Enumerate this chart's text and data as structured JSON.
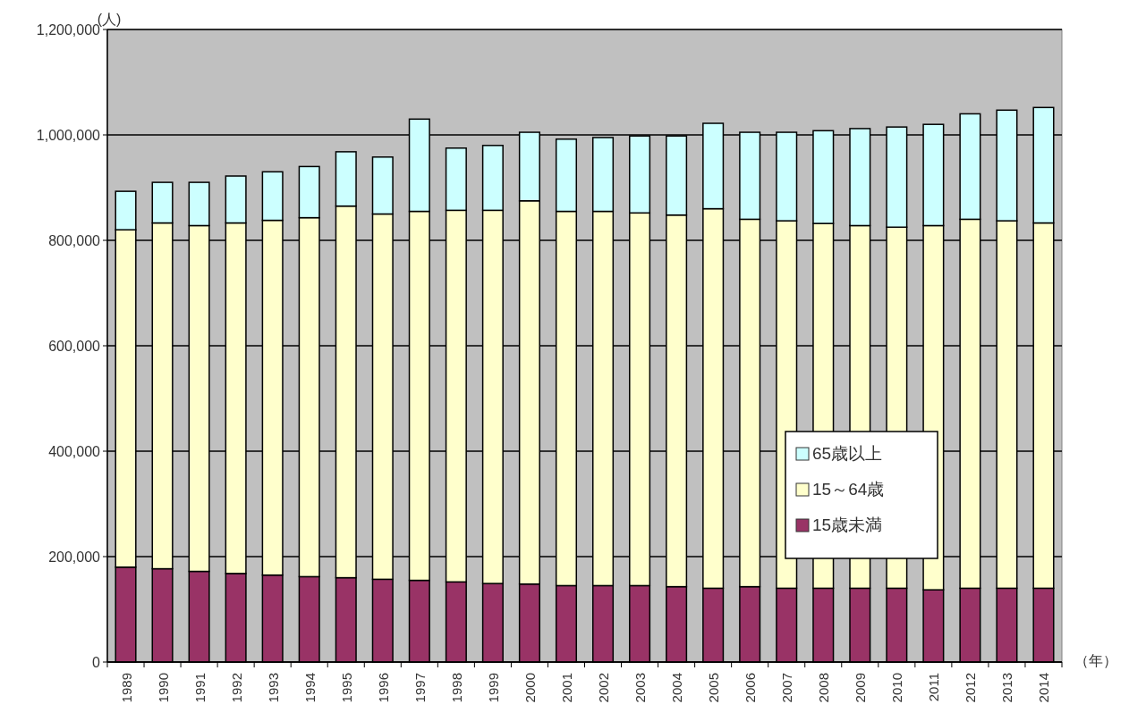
{
  "chart_data": {
    "type": "bar",
    "stacked": true,
    "xlabel": "（年）",
    "ylabel": "(人)",
    "categories": [
      "1989",
      "1990",
      "1991",
      "1992",
      "1993",
      "1994",
      "1995",
      "1996",
      "1997",
      "1998",
      "1999",
      "2000",
      "2001",
      "2002",
      "2003",
      "2004",
      "2005",
      "2006",
      "2007",
      "2008",
      "2009",
      "2010",
      "2011",
      "2012",
      "2013",
      "2014"
    ],
    "series": [
      {
        "name": "15歳未満",
        "color": "#993366",
        "values": [
          180000,
          177000,
          172000,
          168000,
          165000,
          162000,
          160000,
          157000,
          155000,
          152000,
          149000,
          148000,
          145000,
          145000,
          145000,
          143000,
          140000,
          143000,
          140000,
          140000,
          140000,
          140000,
          137000,
          140000,
          140000,
          140000
        ]
      },
      {
        "name": "15～64歳",
        "color": "#ffffcc",
        "values": [
          640000,
          656000,
          656000,
          665000,
          673000,
          681000,
          705000,
          693000,
          700000,
          705000,
          708000,
          727000,
          710000,
          710000,
          707000,
          705000,
          720000,
          697000,
          697000,
          692000,
          688000,
          685000,
          691000,
          700000,
          697000,
          693000
        ]
      },
      {
        "name": "65歳以上",
        "color": "#ccffff",
        "values": [
          73000,
          77000,
          82000,
          89000,
          92000,
          97000,
          103000,
          108000,
          175000,
          118000,
          123000,
          130000,
          137000,
          140000,
          146000,
          150000,
          162000,
          165000,
          168000,
          176000,
          184000,
          190000,
          192000,
          200000,
          210000,
          219000
        ]
      }
    ],
    "ylim": [
      0,
      1200000
    ],
    "yticks": [
      0,
      {
        "value": 200000,
        "label": "200,000"
      },
      {
        "value": 400000,
        "label": "400,000"
      },
      {
        "value": 600000,
        "label": "600,000"
      },
      {
        "value": 800000,
        "label": "800,000"
      },
      {
        "value": 1000000,
        "label": "1,000,000"
      },
      {
        "value": 1200000,
        "label": "1,200,000"
      }
    ],
    "grid": "y",
    "legend": "right"
  }
}
